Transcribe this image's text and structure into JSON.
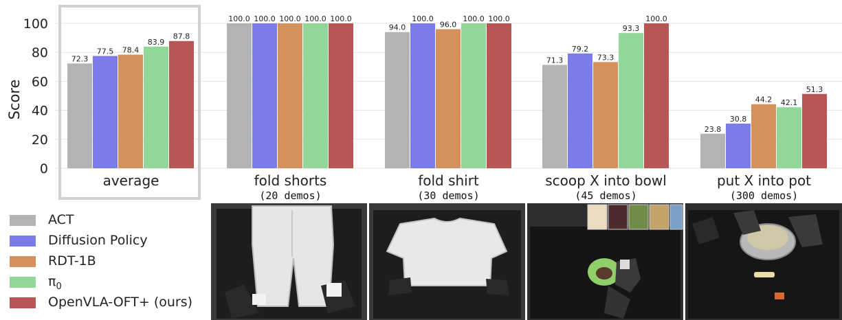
{
  "chart_data": {
    "type": "bar",
    "ylabel": "Score",
    "ylim": [
      0,
      110
    ],
    "yticks": [
      0,
      20,
      40,
      60,
      80,
      100
    ],
    "grid": "y",
    "categories": [
      {
        "label": "average",
        "sublabel": ""
      },
      {
        "label": "fold shorts",
        "sublabel": "(20 demos)"
      },
      {
        "label": "fold shirt",
        "sublabel": "(30 demos)"
      },
      {
        "label": "scoop X into bowl",
        "sublabel": "(45 demos)"
      },
      {
        "label": "put X into pot",
        "sublabel": "(300 demos)"
      }
    ],
    "highlight": "average",
    "series": [
      {
        "name": "ACT",
        "color": "#b3b3b3",
        "values": [
          72.3,
          100.0,
          94.0,
          71.3,
          23.8
        ],
        "labels": [
          "72.3",
          "100.0",
          "94.0",
          "71.3",
          "23.8"
        ]
      },
      {
        "name": "Diffusion Policy",
        "color": "#7b7bea",
        "values": [
          77.5,
          100.0,
          100.0,
          79.2,
          30.8
        ],
        "labels": [
          "77.5",
          "100.0",
          "100.0",
          "79.2",
          "30.8"
        ]
      },
      {
        "name": "RDT-1B",
        "color": "#d4915b",
        "values": [
          78.4,
          100.0,
          96.0,
          73.3,
          44.2
        ],
        "labels": [
          "78.4",
          "100.0",
          "96.0",
          "73.3",
          "44.2"
        ]
      },
      {
        "name": "π0",
        "color": "#93d699",
        "values": [
          83.9,
          100.0,
          100.0,
          93.3,
          42.1
        ],
        "labels": [
          "83.9",
          "100.0",
          "100.0",
          "93.3",
          "42.1"
        ]
      },
      {
        "name": "OpenVLA-OFT+ (ours)",
        "color": "#b85555",
        "values": [
          87.8,
          100.0,
          100.0,
          100.0,
          51.3
        ],
        "labels": [
          "87.8",
          "100.0",
          "100.0",
          "100.0",
          "51.3"
        ]
      }
    ]
  },
  "legend": {
    "items": [
      {
        "label": "ACT",
        "color": "#b3b3b3"
      },
      {
        "label": "Diffusion Policy",
        "color": "#7b7bea"
      },
      {
        "label": "RDT-1B",
        "color": "#d4915b"
      },
      {
        "label": "π",
        "sub": "0",
        "color": "#93d699"
      },
      {
        "label": "OpenVLA-OFT+ (ours)",
        "color": "#b85555"
      }
    ]
  },
  "photos": [
    {
      "subject": "robot folding shorts"
    },
    {
      "subject": "robot folding shirt"
    },
    {
      "subject": "robot scooping into bowl"
    },
    {
      "subject": "robot putting item into pot"
    }
  ]
}
